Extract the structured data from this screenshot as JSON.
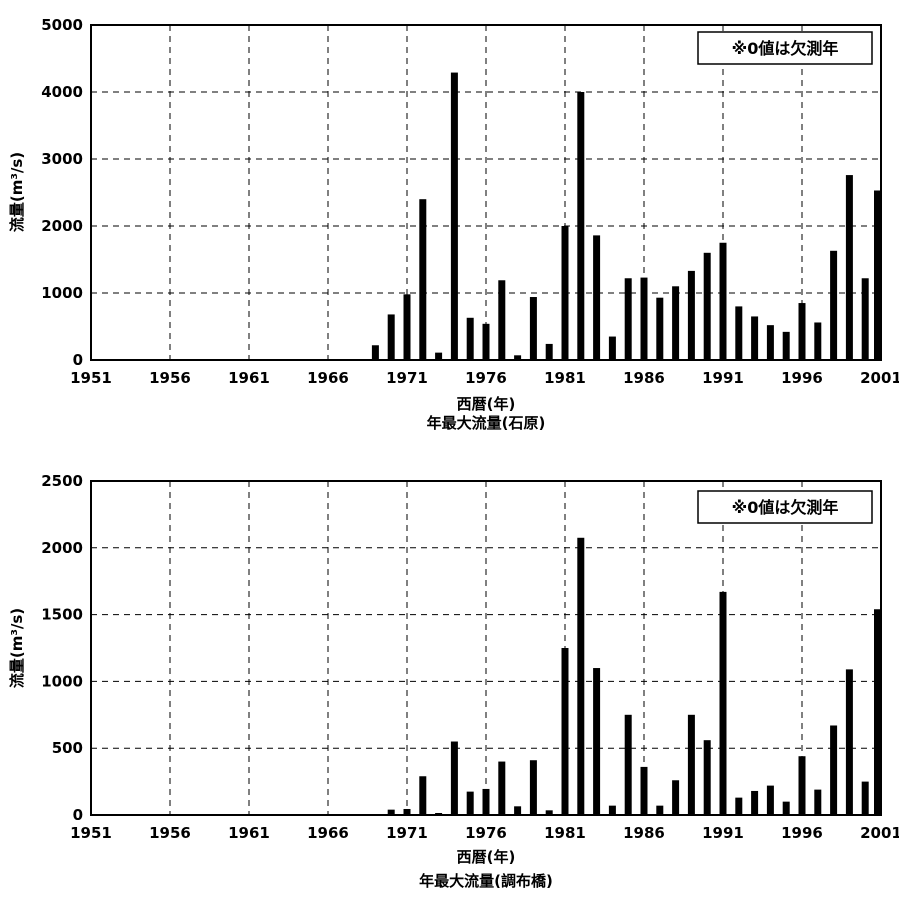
{
  "chart_data": [
    {
      "type": "bar",
      "title": "年最大流量(石原)",
      "xlabel": "西暦(年)",
      "ylabel_main": "流量",
      "ylabel_unit": "(m³/s)",
      "annotation": "※0値は欠測年",
      "xlim": [
        1951,
        2001
      ],
      "ylim": [
        0,
        5000
      ],
      "x_ticks": [
        "1951",
        "1956",
        "1961",
        "1966",
        "1971",
        "1976",
        "1981",
        "1986",
        "1991",
        "1996",
        "2001"
      ],
      "y_ticks": [
        "0",
        "1000",
        "2000",
        "3000",
        "4000",
        "5000"
      ],
      "grid": true,
      "years": [
        1969,
        1970,
        1971,
        1972,
        1973,
        1974,
        1975,
        1976,
        1977,
        1978,
        1979,
        1980,
        1981,
        1982,
        1983,
        1984,
        1985,
        1986,
        1987,
        1988,
        1989,
        1990,
        1991,
        1992,
        1993,
        1994,
        1995,
        1996,
        1997,
        1998,
        1999,
        2000,
        2001
      ],
      "values": [
        220,
        680,
        980,
        2400,
        110,
        4290,
        630,
        540,
        1190,
        70,
        940,
        240,
        2000,
        4000,
        1860,
        350,
        1220,
        1230,
        930,
        1100,
        1330,
        1600,
        1750,
        800,
        650,
        520,
        420,
        850,
        560,
        1630,
        2760,
        1220,
        2530
      ]
    },
    {
      "type": "bar",
      "title": "年最大流量(調布橋)",
      "xlabel": "西暦(年)",
      "ylabel_main": "流量",
      "ylabel_unit": "(m³/s)",
      "annotation": "※0値は欠測年",
      "xlim": [
        1951,
        2001
      ],
      "ylim": [
        0,
        2500
      ],
      "x_ticks": [
        "1951",
        "1956",
        "1961",
        "1966",
        "1971",
        "1976",
        "1981",
        "1986",
        "1991",
        "1996",
        "2001"
      ],
      "y_ticks": [
        "0",
        "500",
        "1000",
        "1500",
        "2000",
        "2500"
      ],
      "grid": true,
      "years": [
        1970,
        1971,
        1972,
        1973,
        1974,
        1975,
        1976,
        1977,
        1978,
        1979,
        1980,
        1981,
        1982,
        1983,
        1984,
        1985,
        1986,
        1987,
        1988,
        1989,
        1990,
        1991,
        1992,
        1993,
        1994,
        1995,
        1996,
        1997,
        1998,
        1999,
        2000,
        2001
      ],
      "values": [
        40,
        45,
        290,
        15,
        550,
        175,
        195,
        400,
        65,
        410,
        35,
        1250,
        2075,
        1100,
        70,
        750,
        360,
        70,
        260,
        750,
        560,
        1670,
        130,
        180,
        220,
        100,
        440,
        190,
        670,
        1090,
        250,
        1540
      ]
    }
  ]
}
